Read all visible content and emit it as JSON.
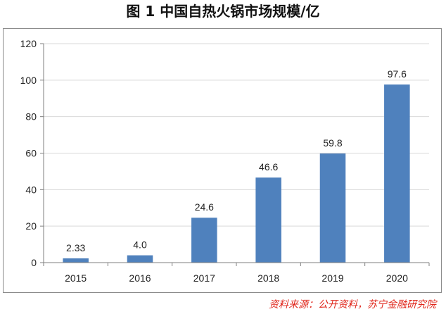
{
  "page": {
    "title": "图 1  中国自热火锅市场规模/亿",
    "source": "资料来源：公开资料，苏宁金融研究院"
  },
  "chart_data": {
    "type": "bar",
    "title": "图 1  中国自热火锅市场规模/亿",
    "categories": [
      "2015",
      "2016",
      "2017",
      "2018",
      "2019",
      "2020"
    ],
    "values": [
      2.33,
      4.0,
      24.6,
      46.6,
      59.8,
      97.6
    ],
    "value_labels": [
      "2.33",
      "4.0",
      "24.6",
      "46.6",
      "59.8",
      "97.6"
    ],
    "yticks": [
      0,
      20,
      40,
      60,
      80,
      100,
      120
    ],
    "ylim": [
      0,
      120
    ],
    "xlabel": "",
    "ylabel": "",
    "grid": true,
    "bar_color": "#4f81bd",
    "grid_color": "#d9d9d9",
    "axis_color": "#7f7f7f"
  }
}
